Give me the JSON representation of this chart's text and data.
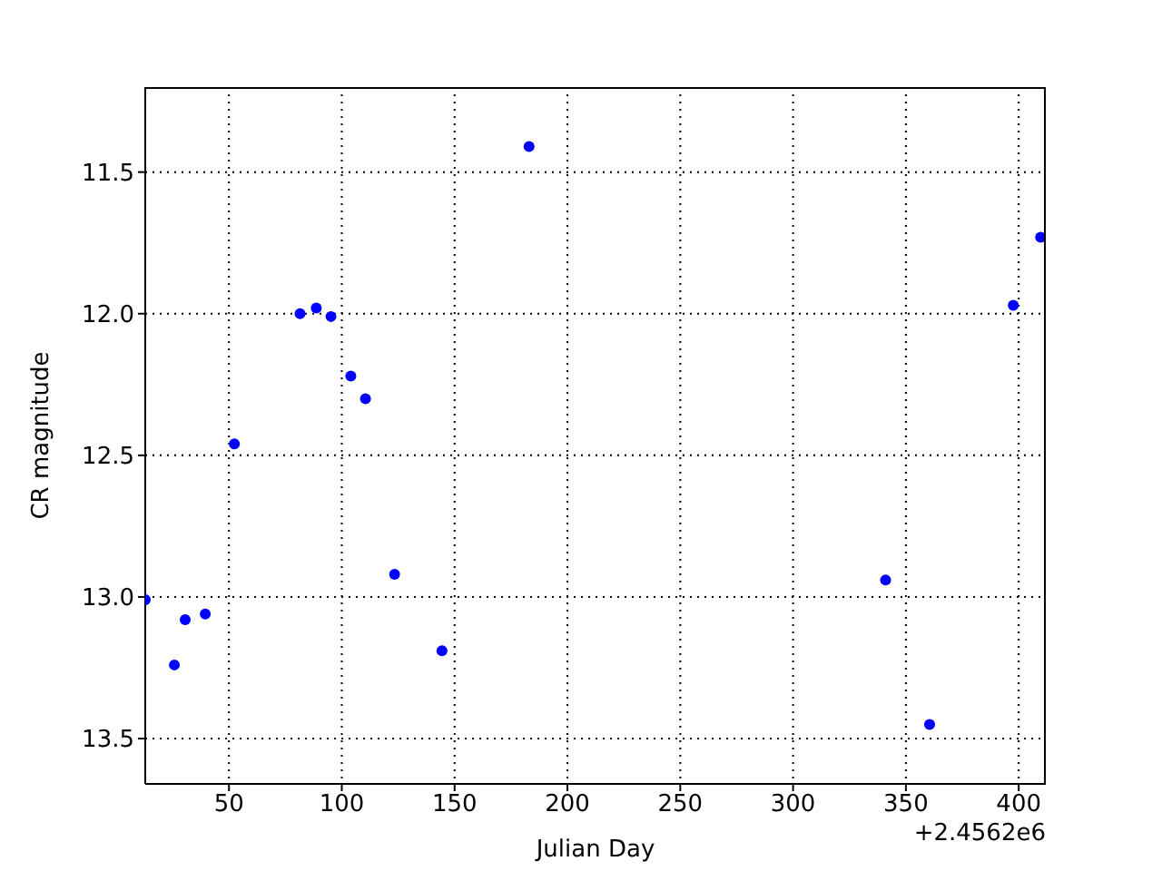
{
  "chart_data": {
    "type": "scatter",
    "xlabel": "Julian Day",
    "ylabel": "CR magnitude",
    "annotations": [
      "+2.4562e6"
    ],
    "x": [
      12.9,
      25.8,
      30.6,
      39.5,
      52.4,
      81.5,
      88.7,
      95.2,
      104,
      110.5,
      123.4,
      144.4,
      183,
      341,
      360.5,
      397.6,
      409.7
    ],
    "series": [
      {
        "color": "#0000ff",
        "values": [
          13.01,
          13.24,
          13.08,
          13.06,
          12.46,
          12.0,
          11.98,
          12.01,
          12.22,
          12.3,
          12.92,
          13.19,
          11.41,
          12.94,
          13.45,
          11.97,
          11.73
        ]
      }
    ],
    "xlim": [
      12.9,
      412
    ],
    "xticks": [
      50,
      100,
      150,
      200,
      250,
      300,
      350,
      400
    ],
    "ylim": [
      13.66,
      11.2
    ],
    "yticks": [
      11.5,
      {
        "value": 12,
        "label": "12.0"
      },
      12.5,
      {
        "value": 13,
        "label": "13.0"
      },
      13.5
    ],
    "grid": true,
    "marker": "circle",
    "legend": false
  }
}
